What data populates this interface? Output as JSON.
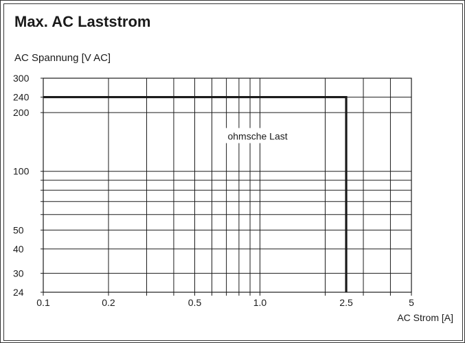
{
  "chart_data": {
    "type": "line",
    "title": "Max. AC Laststrom",
    "ylabel": "AC Spannung  [V AC]",
    "xlabel": "AC Strom [A]",
    "x_scale": "log",
    "y_scale": "log",
    "xlim": [
      0.1,
      5
    ],
    "ylim": [
      24,
      300
    ],
    "x_ticks": [
      {
        "value": 0.1,
        "label": "0.1"
      },
      {
        "value": 0.2,
        "label": "0.2"
      },
      {
        "value": 0.5,
        "label": "0.5"
      },
      {
        "value": 1.0,
        "label": "1.0"
      },
      {
        "value": 2.5,
        "label": "2.5"
      },
      {
        "value": 5,
        "label": "5"
      }
    ],
    "y_ticks": [
      {
        "value": 300,
        "label": "300"
      },
      {
        "value": 240,
        "label": "240"
      },
      {
        "value": 200,
        "label": "200"
      },
      {
        "value": 100,
        "label": "100"
      },
      {
        "value": 50,
        "label": "50"
      },
      {
        "value": 40,
        "label": "40"
      },
      {
        "value": 30,
        "label": "30"
      },
      {
        "value": 24,
        "label": "24"
      }
    ],
    "x_gridlines": [
      0.2,
      0.3,
      0.4,
      0.5,
      0.6,
      0.7,
      0.8,
      0.9,
      1.0,
      2.0,
      3.0,
      4.0,
      5
    ],
    "y_gridlines": [
      30,
      40,
      50,
      60,
      70,
      80,
      90,
      100,
      200,
      240,
      300
    ],
    "series": [
      {
        "x": [
          0.1,
          2.5,
          2.5
        ],
        "y": [
          240,
          240,
          24
        ]
      }
    ],
    "annotation": {
      "text": "ohmsche Last",
      "x": 1.0,
      "y": 150
    },
    "grid": true
  }
}
